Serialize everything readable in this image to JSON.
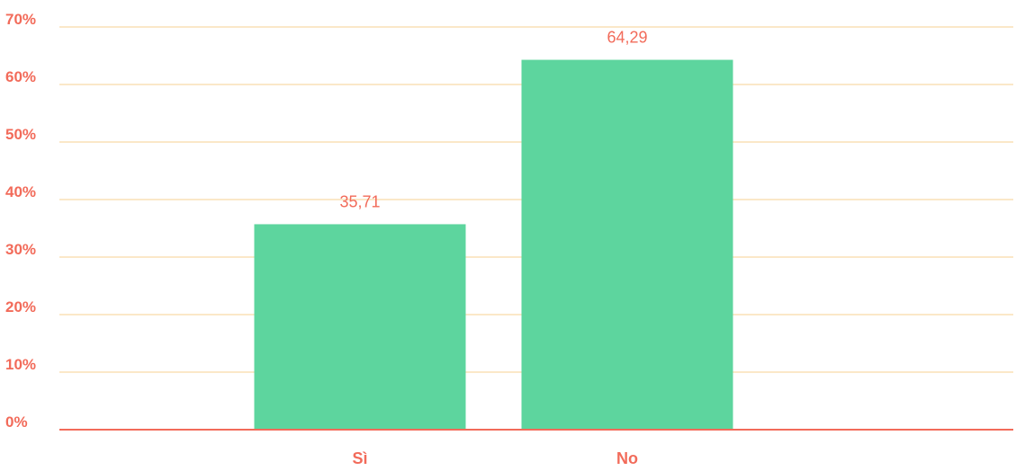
{
  "chart_data": {
    "type": "bar",
    "title": "",
    "xlabel": "",
    "ylabel": "",
    "categories": [
      "Sì",
      "No"
    ],
    "values": [
      35.71,
      64.29
    ],
    "data_labels": [
      "35,71",
      "64,29"
    ],
    "ylim": [
      0,
      70
    ],
    "yticks": [
      0,
      10,
      20,
      30,
      40,
      50,
      60,
      70
    ],
    "ytick_labels": [
      "0%",
      "10%",
      "20%",
      "30%",
      "40%",
      "50%",
      "60%",
      "70%"
    ],
    "grid": true,
    "legend": "none",
    "colors": {
      "bar": "#5dd59e",
      "text": "#f26b5a",
      "grid": "#fbe8c8",
      "axis": "#f26b5a"
    }
  }
}
